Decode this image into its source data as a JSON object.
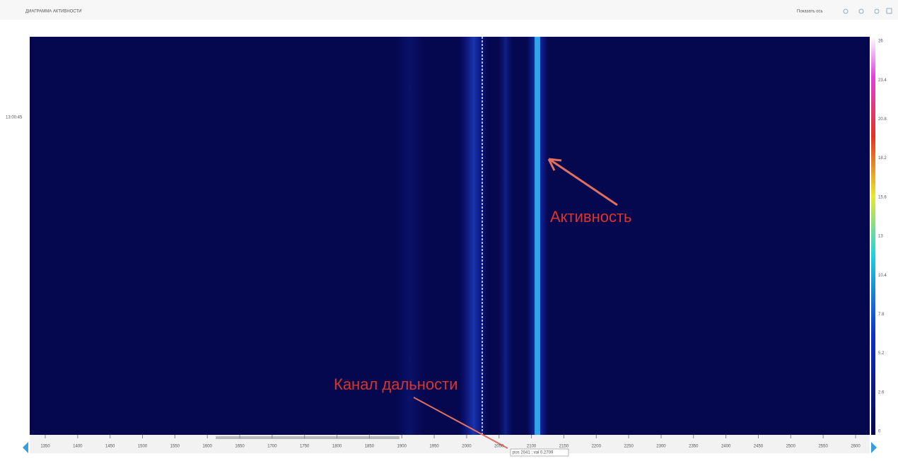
{
  "header": {
    "title": "ДИАГРАММА АКТИВНОСТИ",
    "toggle": "Показать ось"
  },
  "plot": {
    "y_label": "13:00:45",
    "x_ticks": [
      "1350",
      "1400",
      "1450",
      "1500",
      "1550",
      "1600",
      "1650",
      "1700",
      "1750",
      "1800",
      "1850",
      "1900",
      "1950",
      "2000",
      "2050",
      "2100",
      "2150",
      "2200",
      "2250",
      "2300",
      "2350",
      "2400",
      "2450",
      "2500",
      "2550",
      "2600"
    ],
    "colorbar_ticks": [
      "26",
      "23.4",
      "20.8",
      "18.2",
      "15.6",
      "13",
      "10.4",
      "7.8",
      "5.2",
      "2.6",
      "0"
    ],
    "tooltip": "pos 2041 ; val 0.2709"
  },
  "annotations": {
    "activity": "Активность",
    "range_channel": "Канал дальности"
  }
}
